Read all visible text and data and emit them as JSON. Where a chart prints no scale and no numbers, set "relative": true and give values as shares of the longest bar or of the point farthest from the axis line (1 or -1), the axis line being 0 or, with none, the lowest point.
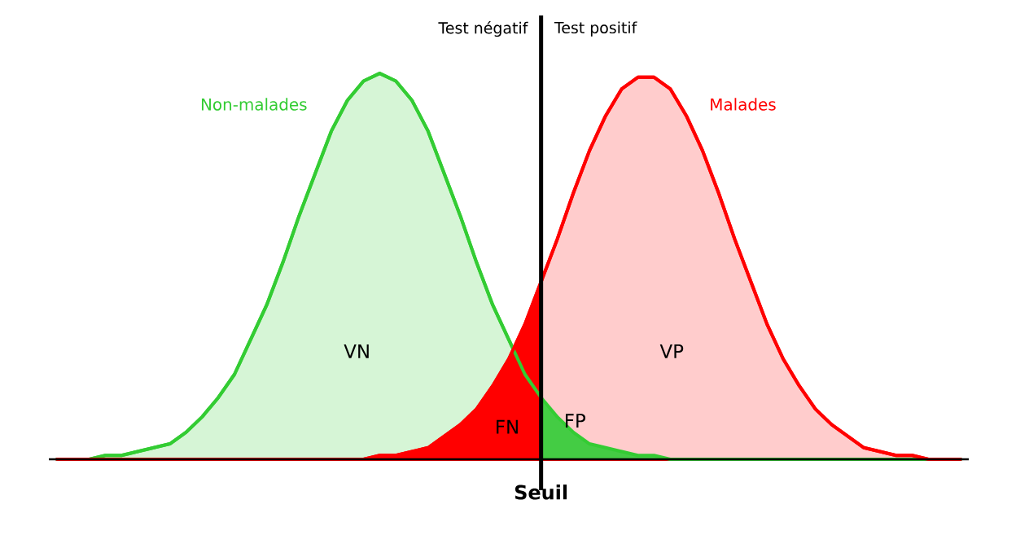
{
  "chart_data": {
    "type": "area",
    "relative": true,
    "categories": [
      null,
      null,
      null,
      null,
      null,
      null,
      null,
      null,
      null,
      null,
      null,
      null,
      null,
      null,
      null,
      null,
      null,
      null,
      null,
      null,
      null,
      null,
      null,
      null,
      null,
      null,
      null,
      null,
      null,
      null,
      null,
      null,
      null,
      null,
      null,
      null,
      null,
      null,
      null,
      null,
      null,
      null,
      null,
      null,
      null,
      null,
      null,
      null,
      null,
      null,
      null,
      null,
      null,
      null,
      null,
      null,
      null
    ],
    "series": [
      {
        "name": "Non-malades",
        "color": "#33cc33",
        "values": [
          0,
          0,
          0,
          0.01,
          0.01,
          0.02,
          0.03,
          0.04,
          0.07,
          0.11,
          0.16,
          0.22,
          0.31,
          0.4,
          0.51,
          0.63,
          0.74,
          0.85,
          0.93,
          0.98,
          1,
          0.98,
          0.93,
          0.85,
          0.74,
          0.63,
          0.51,
          0.4,
          0.31,
          0.22,
          0.16,
          0.11,
          0.07,
          0.04,
          0.03,
          0.02,
          0.01,
          0.01,
          0,
          0,
          0,
          0,
          0,
          0,
          0,
          0,
          0,
          0,
          0,
          0,
          0,
          0,
          0,
          0,
          0,
          0,
          0
        ]
      },
      {
        "name": "Malades",
        "color": "#ff0000",
        "values": [
          0,
          0,
          0,
          0,
          0,
          0,
          0,
          0,
          0,
          0,
          0,
          0,
          0,
          0,
          0,
          0,
          0,
          0,
          0,
          0,
          0.01,
          0.01,
          0.02,
          0.03,
          0.06,
          0.09,
          0.13,
          0.19,
          0.26,
          0.35,
          0.46,
          0.57,
          0.69,
          0.8,
          0.89,
          0.96,
          0.99,
          0.99,
          0.96,
          0.89,
          0.8,
          0.69,
          0.57,
          0.46,
          0.35,
          0.26,
          0.19,
          0.13,
          0.09,
          0.06,
          0.03,
          0.02,
          0.01,
          0.01,
          0,
          0,
          0
        ]
      },
      {
        "color": "#ff0000",
        "values": [
          0,
          0,
          0,
          0,
          0,
          0,
          0,
          0,
          0,
          0,
          0,
          0,
          0,
          0,
          0,
          0,
          0,
          0,
          0,
          0,
          0.01,
          0.01,
          0.02,
          0.03,
          0.06,
          0.09,
          0.13,
          0.19,
          0.26,
          0.35,
          0.46,
          null,
          null,
          null,
          null,
          null,
          null,
          null,
          null,
          null,
          null,
          null,
          null,
          null,
          null,
          null,
          null,
          null,
          null,
          null,
          null,
          null,
          null,
          null,
          null,
          null,
          null
        ]
      },
      {
        "color": "#44cc44",
        "values": [
          null,
          null,
          null,
          null,
          null,
          null,
          null,
          null,
          null,
          null,
          null,
          null,
          null,
          null,
          null,
          null,
          null,
          null,
          null,
          null,
          null,
          null,
          null,
          null,
          null,
          null,
          null,
          null,
          null,
          null,
          0.16,
          0.11,
          0.07,
          0.04,
          0.03,
          0.02,
          0.01,
          0.01,
          0,
          0,
          0,
          0,
          0,
          0,
          0,
          0,
          0,
          0,
          0,
          0,
          0,
          0,
          0,
          0,
          0,
          0,
          0
        ]
      }
    ],
    "annotations": [
      "Test négatif",
      "Test positif",
      "VN",
      "VP",
      "FN",
      "FP",
      "Seuil"
    ]
  }
}
